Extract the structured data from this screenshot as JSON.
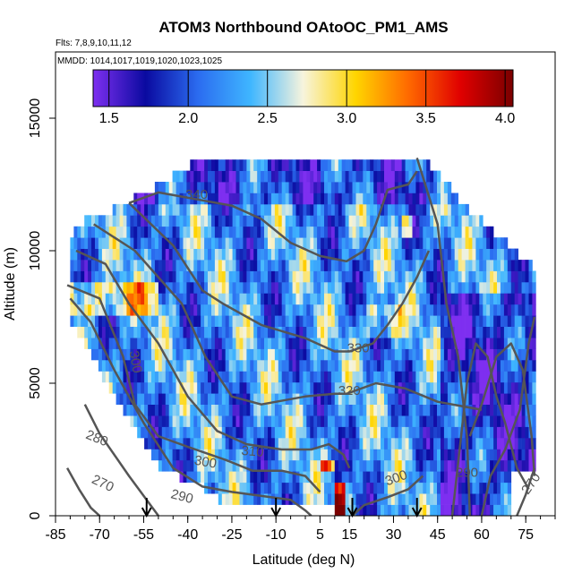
{
  "chart_data": {
    "type": "heatmap",
    "title": "ATOM3 Northbound OAtoOC_PM1_AMS",
    "flights_label": "Flts: 7,8,9,10,11,12",
    "dates_label": "MMDD: 1014,1017,1019,1020,1023,1025",
    "xlabel": "Latitude (deg N)",
    "ylabel": "Altitude (m)",
    "xlim": [
      -85,
      85
    ],
    "ylim": [
      0,
      17500
    ],
    "x_ticks": [
      -85,
      -70,
      -55,
      -40,
      -25,
      -10,
      5,
      15,
      30,
      45,
      60,
      75
    ],
    "x_tick_labels": [
      "-85",
      "-70",
      "-55",
      "-40",
      "-25",
      "-10",
      "5",
      "15",
      "30",
      "45",
      "60",
      "75"
    ],
    "y_ticks": [
      0,
      5000,
      10000,
      15000
    ],
    "y_tick_labels": [
      "0",
      "5000",
      "10000",
      "15000"
    ],
    "colorbar": {
      "range": [
        1.4,
        4.05
      ],
      "ticks": [
        1.5,
        2.0,
        2.5,
        3.0,
        3.5,
        4.0
      ],
      "tick_labels": [
        "1.5",
        "2.0",
        "2.5",
        "3.0",
        "3.5",
        "4.0"
      ],
      "colors": [
        "#7e2ff0",
        "#0a0aa0",
        "#2b6cf0",
        "#3fb6ff",
        "#f7f4dd",
        "#ffd500",
        "#ff6a00",
        "#e00000",
        "#7a0000"
      ]
    },
    "contours": [
      {
        "level": 270,
        "label": "270",
        "label_x": -69,
        "label_y": 1200,
        "label_rot": 25
      },
      {
        "level": 280,
        "label": "280",
        "label_x": -71,
        "label_y": 2900,
        "label_rot": 22
      },
      {
        "level": 290,
        "label": "290",
        "label_x": -42,
        "label_y": 700,
        "label_rot": 15
      },
      {
        "level": 300,
        "label": "300",
        "label_x": -34,
        "label_y": 2000,
        "label_rot": 10
      },
      {
        "level": 300,
        "label": "300",
        "label_x": -58,
        "label_y": 5800,
        "label_rot": 80
      },
      {
        "level": 300,
        "label": "300",
        "label_x": 31,
        "label_y": 1400,
        "label_rot": -20
      },
      {
        "level": 310,
        "label": "310",
        "label_x": -18,
        "label_y": 2400,
        "label_rot": 5
      },
      {
        "level": 320,
        "label": "320",
        "label_x": 15,
        "label_y": 4700,
        "label_rot": 0
      },
      {
        "level": 330,
        "label": "330",
        "label_x": 18,
        "label_y": 6300,
        "label_rot": 0
      },
      {
        "level": 340,
        "label": "340",
        "label_x": -37,
        "label_y": 12100,
        "label_rot": 0
      },
      {
        "level": 290,
        "label": "290",
        "label_x": 55,
        "label_y": 1600,
        "label_rot": 0
      },
      {
        "level": 270,
        "label": "270",
        "label_x": 77,
        "label_y": 1200,
        "label_rot": -55
      }
    ],
    "arrows_latitude": [
      -54,
      -10,
      16,
      38
    ]
  }
}
